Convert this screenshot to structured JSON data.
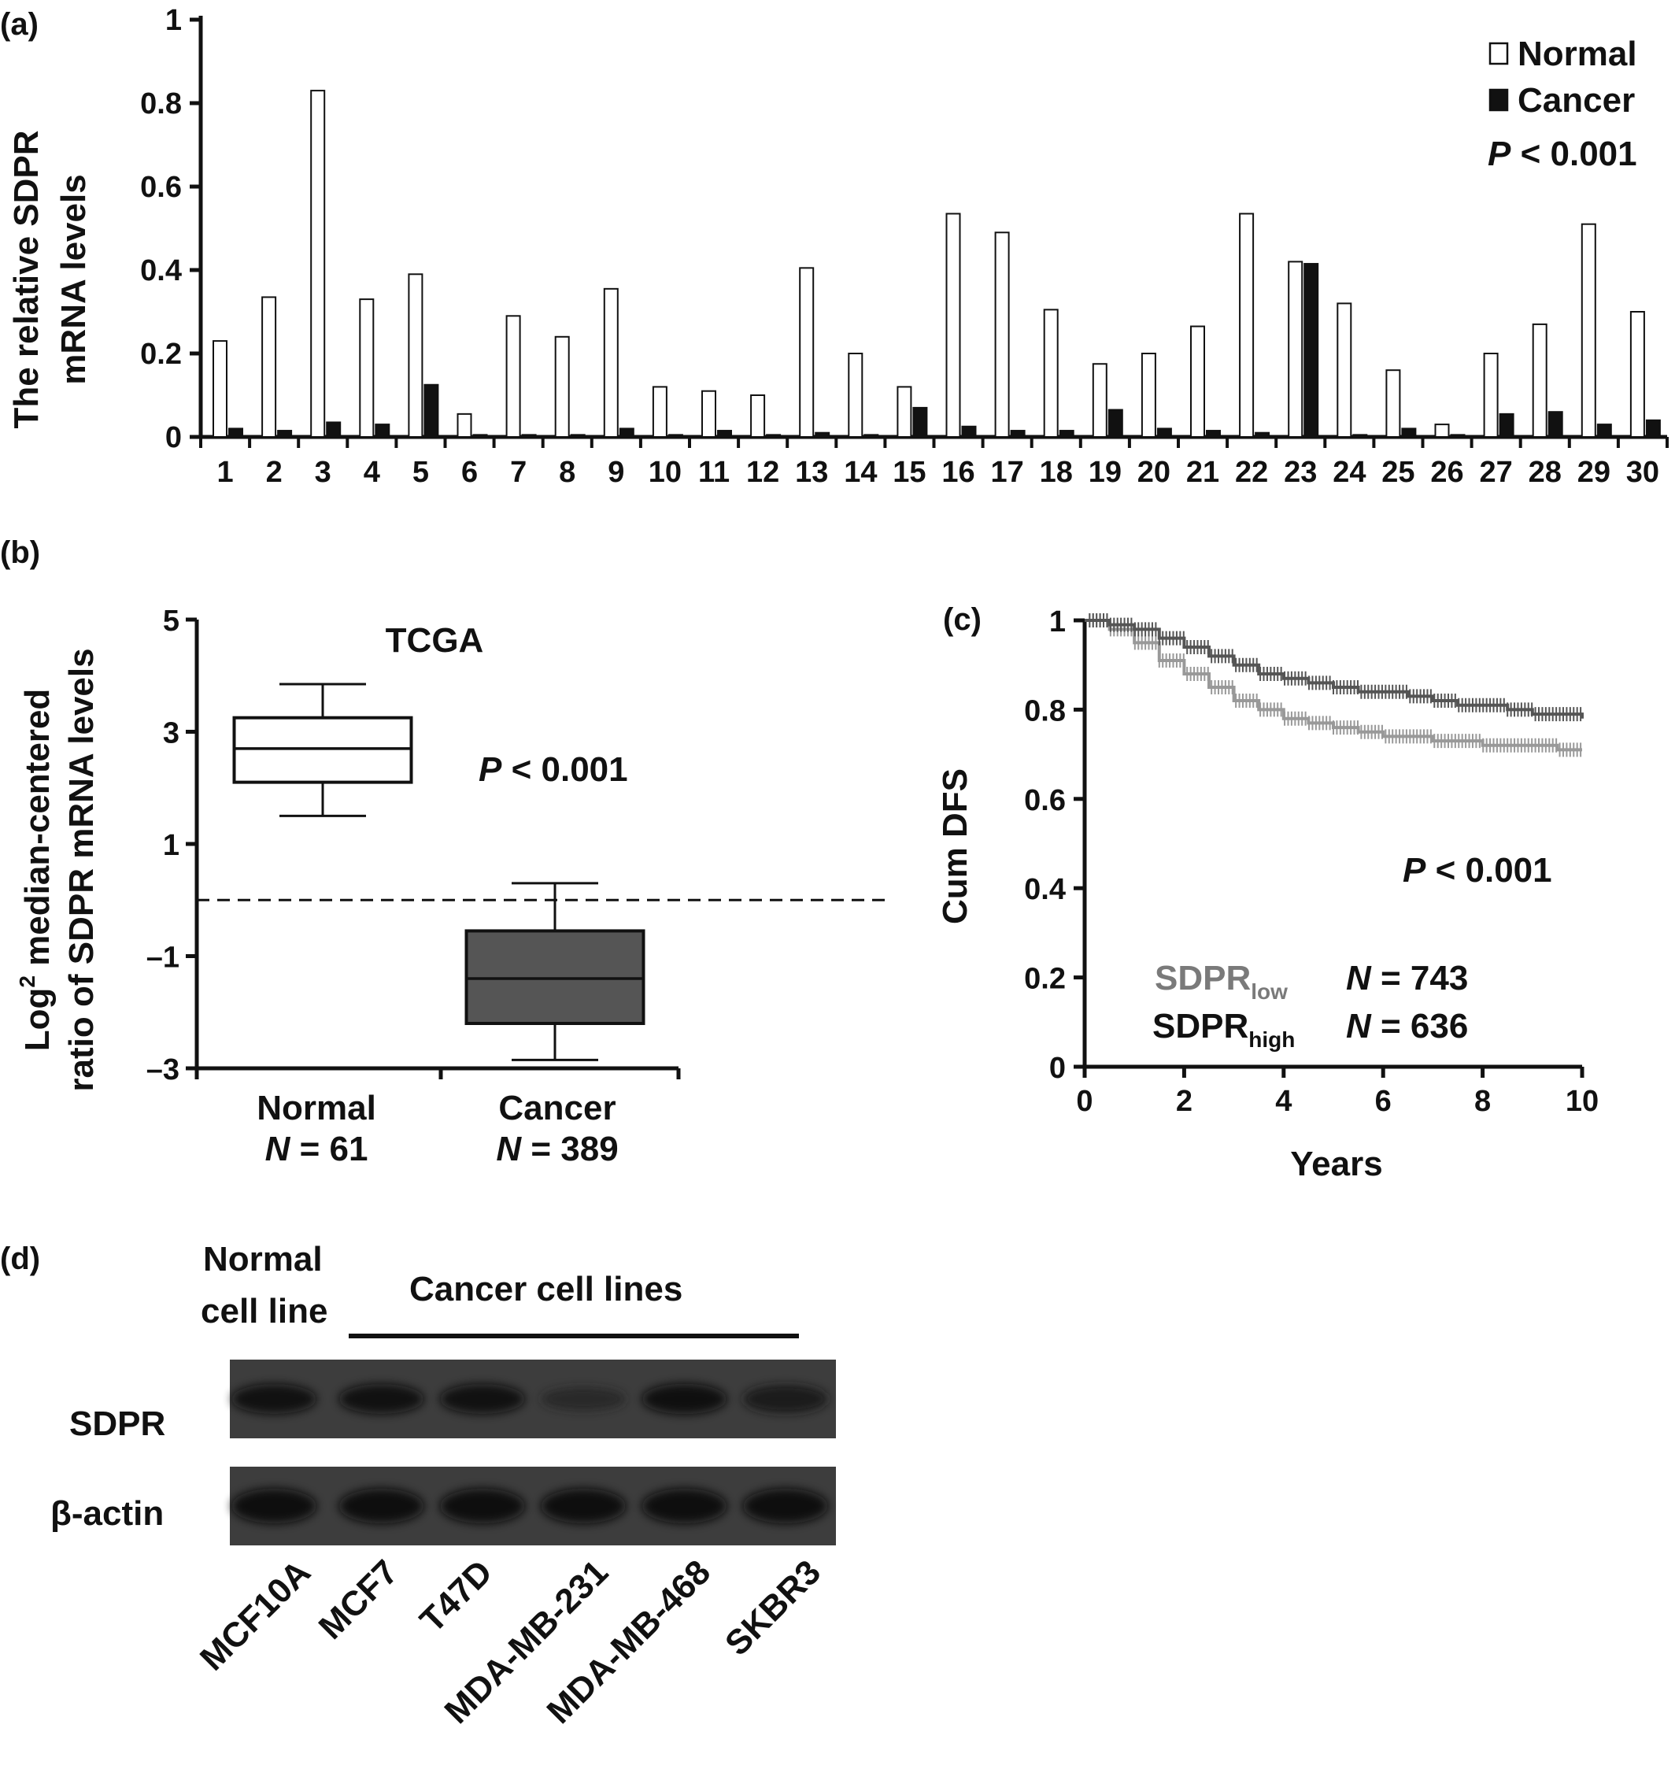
{
  "panels": {
    "a": {
      "label": "(a)",
      "chart_data": {
        "type": "bar",
        "categories": [
          "1",
          "2",
          "3",
          "4",
          "5",
          "6",
          "7",
          "8",
          "9",
          "10",
          "11",
          "12",
          "13",
          "14",
          "15",
          "16",
          "17",
          "18",
          "19",
          "20",
          "21",
          "22",
          "23",
          "24",
          "25",
          "26",
          "27",
          "28",
          "29",
          "30"
        ],
        "series": [
          {
            "name": "Normal",
            "color": "#ffffff",
            "values": [
              0.23,
              0.335,
              0.83,
              0.33,
              0.39,
              0.055,
              0.29,
              0.24,
              0.355,
              0.12,
              0.11,
              0.1,
              0.405,
              0.2,
              0.12,
              0.535,
              0.49,
              0.305,
              0.175,
              0.2,
              0.265,
              0.535,
              0.42,
              0.32,
              0.16,
              0.03,
              0.2,
              0.27,
              0.51,
              0.3
            ]
          },
          {
            "name": "Cancer",
            "color": "#111111",
            "values": [
              0.02,
              0.015,
              0.035,
              0.03,
              0.125,
              0.005,
              0.005,
              0.005,
              0.02,
              0.005,
              0.015,
              0.005,
              0.01,
              0.005,
              0.07,
              0.025,
              0.015,
              0.015,
              0.065,
              0.02,
              0.015,
              0.01,
              0.415,
              0.005,
              0.02,
              0.005,
              0.055,
              0.06,
              0.03,
              0.04
            ]
          }
        ],
        "ylabel_line1": "The relative SDPR",
        "ylabel_line2": "mRNA levels",
        "ylim": [
          0,
          1
        ],
        "yticks": [
          "0",
          "0.2",
          "0.4",
          "0.6",
          "0.8",
          "1"
        ],
        "legend": [
          "Normal",
          "Cancer"
        ],
        "pvalue_italic": "P",
        "pvalue_text": " < 0.001",
        "legend_position": "top-right"
      }
    },
    "b": {
      "label": "(b)",
      "chart_data": {
        "type": "box",
        "title": "TCGA",
        "ylabel_line1_pre": "Log",
        "ylabel_line1_sup": "2",
        "ylabel_line1_post": " median-centered",
        "ylabel_line2": "ratio of SDPR mRNA levels",
        "ylim": [
          -3,
          5
        ],
        "yticks": [
          "5",
          "3",
          "1",
          "–1",
          "–3"
        ],
        "reference_line": 0,
        "boxes": [
          {
            "name": "Normal",
            "n_label_italic": "N",
            "n_label": " = 61",
            "color": "#ffffff",
            "whisker_low": 1.5,
            "q1": 2.1,
            "median": 2.7,
            "q3": 3.25,
            "whisker_high": 3.85
          },
          {
            "name": "Cancer",
            "n_label_italic": "N",
            "n_label": " = 389",
            "color": "#555555",
            "whisker_low": -2.85,
            "q1": -2.2,
            "median": -1.4,
            "q3": -0.55,
            "whisker_high": 0.3
          }
        ],
        "pvalue_italic": "P",
        "pvalue_text": " < 0.001"
      }
    },
    "c": {
      "label": "(c)",
      "chart_data": {
        "type": "line",
        "ylabel": "Cum DFS",
        "xlabel": "Years",
        "xlim": [
          0,
          10
        ],
        "ylim": [
          0,
          1
        ],
        "xticks": [
          "0",
          "2",
          "4",
          "6",
          "8",
          "10"
        ],
        "yticks": [
          "0",
          "0.2",
          "0.4",
          "0.6",
          "0.8",
          "1"
        ],
        "series": [
          {
            "name_main": "SDPR",
            "name_sub": "low",
            "n_italic": "N",
            "n_label": " = 743",
            "color": "#999999",
            "x": [
              0,
              0.5,
              1,
              1.5,
              2,
              2.5,
              3,
              3.5,
              4,
              4.5,
              5,
              5.5,
              6,
              6.5,
              7,
              7.5,
              8,
              8.5,
              9,
              9.5,
              10
            ],
            "y": [
              1.0,
              0.98,
              0.95,
              0.91,
              0.88,
              0.85,
              0.82,
              0.8,
              0.78,
              0.77,
              0.76,
              0.75,
              0.74,
              0.74,
              0.73,
              0.73,
              0.72,
              0.72,
              0.72,
              0.71,
              0.71
            ]
          },
          {
            "name_main": "SDPR",
            "name_sub": "high",
            "n_italic": "N",
            "n_label": " = 636",
            "color": "#555555",
            "x": [
              0,
              0.5,
              1,
              1.5,
              2,
              2.5,
              3,
              3.5,
              4,
              4.5,
              5,
              5.5,
              6,
              6.5,
              7,
              7.5,
              8,
              8.5,
              9,
              9.5,
              10
            ],
            "y": [
              1.0,
              0.99,
              0.98,
              0.96,
              0.94,
              0.92,
              0.9,
              0.88,
              0.87,
              0.86,
              0.85,
              0.84,
              0.84,
              0.83,
              0.82,
              0.81,
              0.81,
              0.8,
              0.79,
              0.79,
              0.78
            ]
          }
        ],
        "pvalue_italic": "P",
        "pvalue_text": " < 0.001"
      }
    },
    "d": {
      "label": "(d)",
      "header_normal_line1": "Normal",
      "header_normal_line2": "cell line",
      "header_cancer": "Cancer cell lines",
      "rows": [
        {
          "name": "SDPR",
          "band_intensity": [
            0.85,
            0.85,
            0.85,
            0.35,
            0.9,
            0.75
          ]
        },
        {
          "name": "β-actin",
          "band_intensity": [
            0.95,
            0.95,
            0.95,
            0.95,
            0.95,
            0.95
          ]
        }
      ],
      "lanes": [
        "MCF10A",
        "MCF7",
        "T47D",
        "MDA-MB-231",
        "MDA-MB-468",
        "SKBR3"
      ]
    }
  }
}
